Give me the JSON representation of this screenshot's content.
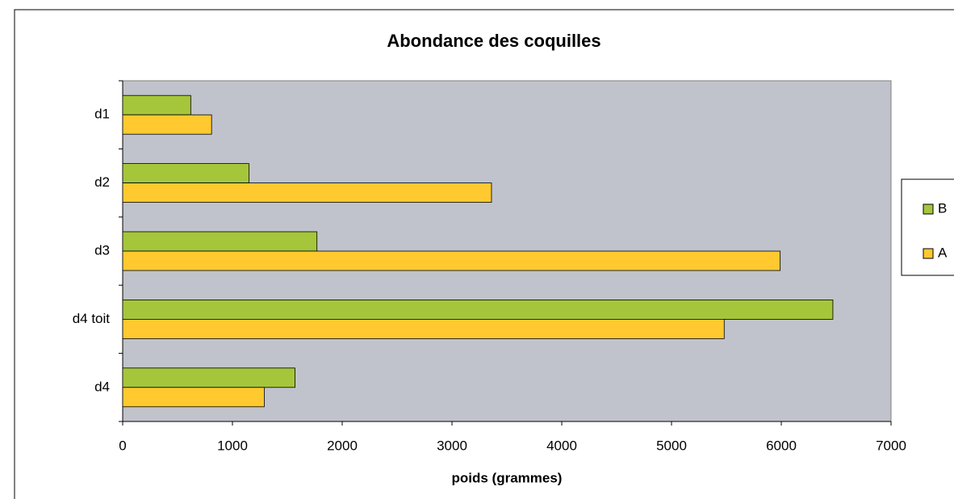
{
  "chart_data": {
    "type": "barh",
    "title": "Abondance des coquilles",
    "xlabel": "poids (grammes)",
    "categories": [
      "d1",
      "d2",
      "d3",
      "d4 toit",
      "d4"
    ],
    "series": [
      {
        "name": "B",
        "color": "#a5c63b",
        "values": [
          620,
          1150,
          1770,
          6470,
          1570
        ]
      },
      {
        "name": "A",
        "color": "#ffc92f",
        "values": [
          810,
          3360,
          5990,
          5480,
          1290
        ]
      }
    ],
    "xlim": [
      0,
      7000
    ],
    "xticks": [
      0,
      1000,
      2000,
      3000,
      4000,
      5000,
      6000,
      7000
    ],
    "plot_background": "#c0c3cb",
    "legend": "right"
  }
}
